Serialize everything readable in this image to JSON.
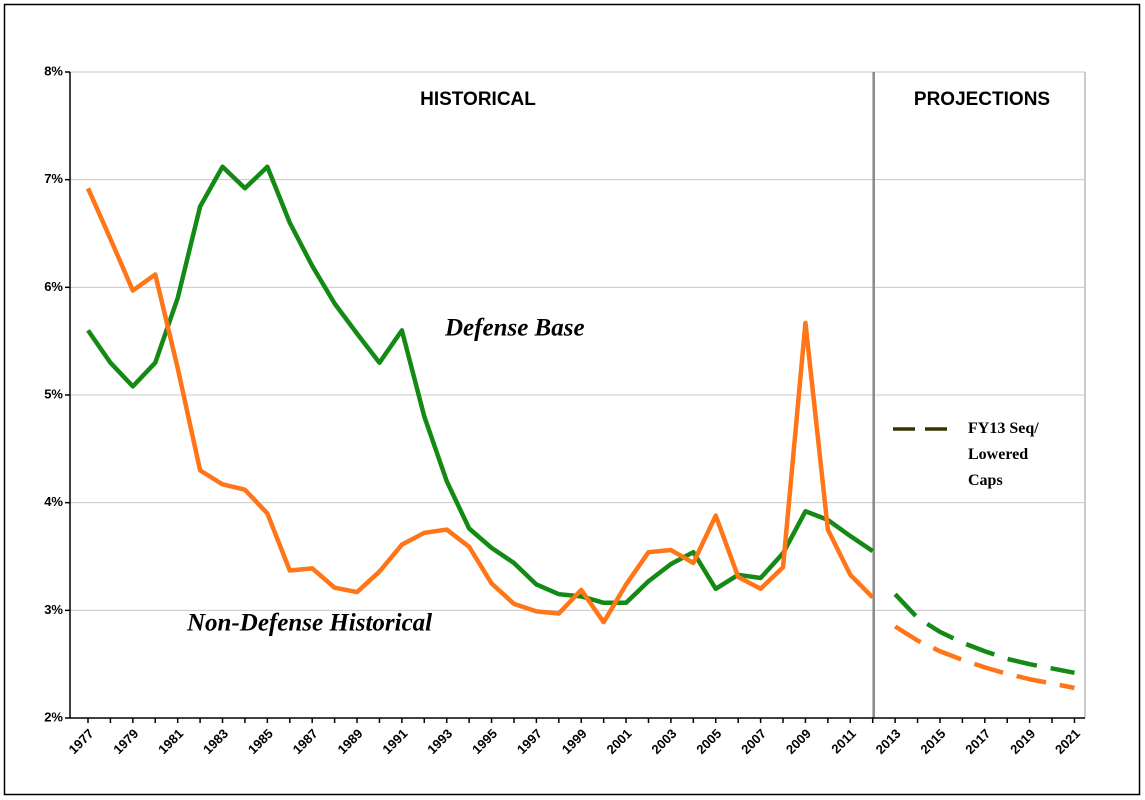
{
  "chart_data": {
    "type": "line",
    "categories": [
      "1977",
      null,
      "1979",
      null,
      "1981",
      null,
      "1983",
      null,
      "1985",
      null,
      "1987",
      null,
      "1989",
      null,
      "1991",
      null,
      "1993",
      null,
      "1995",
      null,
      "1997",
      null,
      "1999",
      null,
      "2001",
      null,
      "2003",
      null,
      "2005",
      null,
      "2007",
      null,
      "2009",
      null,
      "2011",
      null,
      "2013",
      null,
      "2015",
      null,
      "2017",
      null,
      "2019",
      null,
      "2021"
    ],
    "series": [
      {
        "name": "Defense Base",
        "color": "#138a13",
        "dashed": false,
        "values": [
          5.6,
          5.3,
          5.08,
          5.3,
          5.9,
          6.75,
          7.12,
          6.92,
          7.12,
          6.6,
          6.2,
          5.85,
          5.57,
          5.3,
          5.6,
          4.8,
          4.2,
          3.76,
          3.58,
          3.44,
          3.24,
          3.15,
          3.13,
          3.07,
          3.07,
          3.27,
          3.43,
          3.54,
          3.2,
          3.33,
          3.3,
          3.53,
          3.92,
          3.84,
          3.69,
          3.55,
          null,
          null,
          null,
          null,
          null,
          null,
          null,
          null,
          null
        ]
      },
      {
        "name": "Non-Defense Historical",
        "color": "#ff7518",
        "dashed": false,
        "values": [
          6.92,
          6.45,
          5.97,
          6.12,
          5.25,
          4.3,
          4.17,
          4.12,
          3.9,
          3.37,
          3.39,
          3.21,
          3.17,
          3.36,
          3.61,
          3.72,
          3.75,
          3.59,
          3.25,
          3.06,
          2.99,
          2.97,
          3.19,
          2.89,
          3.24,
          3.54,
          3.56,
          3.44,
          3.88,
          3.31,
          3.2,
          3.4,
          5.67,
          3.75,
          3.33,
          3.12,
          null,
          null,
          null,
          null,
          null,
          null,
          null,
          null,
          null
        ]
      },
      {
        "name": "FY13 Seq/ Lowered Caps",
        "color": "#138a13",
        "legend_color": "#333300",
        "dashed": true,
        "values": [
          null,
          null,
          null,
          null,
          null,
          null,
          null,
          null,
          null,
          null,
          null,
          null,
          null,
          null,
          null,
          null,
          null,
          null,
          null,
          null,
          null,
          null,
          null,
          null,
          null,
          null,
          null,
          null,
          null,
          null,
          null,
          null,
          null,
          null,
          null,
          null,
          3.15,
          2.93,
          2.8,
          2.7,
          2.62,
          2.55,
          2.5,
          2.46,
          2.42
        ]
      },
      {
        "color": "#ff7518",
        "dashed": true,
        "values": [
          null,
          null,
          null,
          null,
          null,
          null,
          null,
          null,
          null,
          null,
          null,
          null,
          null,
          null,
          null,
          null,
          null,
          null,
          null,
          null,
          null,
          null,
          null,
          null,
          null,
          null,
          null,
          null,
          null,
          null,
          null,
          null,
          null,
          null,
          null,
          null,
          2.85,
          2.72,
          2.62,
          2.54,
          2.47,
          2.41,
          2.36,
          2.32,
          2.28
        ]
      }
    ],
    "annotations": [
      "HISTORICAL",
      "PROJECTIONS"
    ],
    "ylim": [
      2,
      8
    ],
    "yticks": [
      {
        "value": 2,
        "label": "2%"
      },
      {
        "value": 3,
        "label": "3%"
      },
      {
        "value": 4,
        "label": "4%"
      },
      {
        "value": 5,
        "label": "5%"
      },
      {
        "value": 6,
        "label": "6%"
      },
      {
        "value": 7,
        "label": "7%"
      },
      {
        "value": 8,
        "label": "8%"
      }
    ],
    "grid": true
  }
}
